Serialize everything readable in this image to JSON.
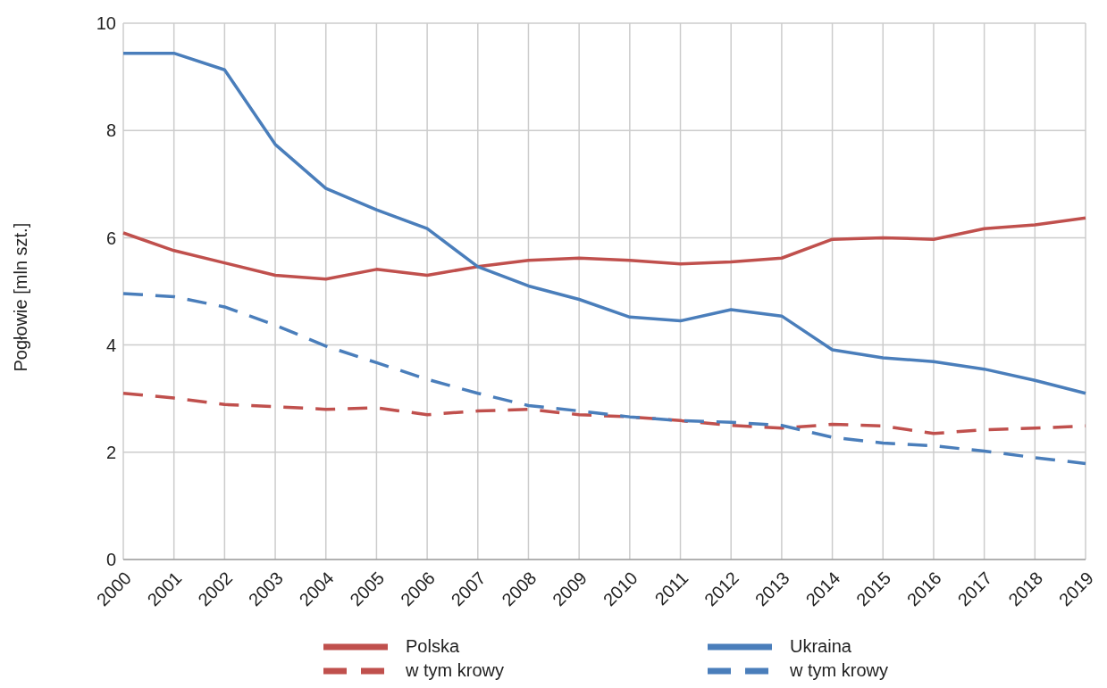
{
  "chart_data": {
    "type": "line",
    "ylabel": "Pogłowie [mln szt.]",
    "categories": [
      "2000",
      "2001",
      "2002",
      "2003",
      "2004",
      "2005",
      "2006",
      "2007",
      "2008",
      "2009",
      "2010",
      "2011",
      "2012",
      "2013",
      "2014",
      "2015",
      "2016",
      "2017",
      "2018",
      "2019"
    ],
    "series": [
      {
        "name": "Polska",
        "color": "#c0504d",
        "line_style": "solid",
        "values": [
          6.09,
          5.76,
          5.53,
          5.3,
          5.23,
          5.41,
          5.3,
          5.46,
          5.58,
          5.62,
          5.58,
          5.51,
          5.55,
          5.62,
          5.97,
          6.0,
          5.97,
          6.17,
          6.24,
          6.37
        ]
      },
      {
        "name": "Ukraina",
        "color": "#4a7ebb",
        "line_style": "solid",
        "values": [
          9.44,
          9.44,
          9.13,
          7.74,
          6.92,
          6.52,
          6.17,
          5.46,
          5.1,
          4.85,
          4.52,
          4.45,
          4.66,
          4.54,
          3.91,
          3.76,
          3.69,
          3.55,
          3.34,
          3.1
        ]
      },
      {
        "name": "w tym krowy",
        "color": "#c0504d",
        "line_style": "dashed",
        "values": [
          3.1,
          3.01,
          2.89,
          2.85,
          2.8,
          2.83,
          2.7,
          2.77,
          2.8,
          2.7,
          2.66,
          2.59,
          2.5,
          2.45,
          2.52,
          2.49,
          2.35,
          2.42,
          2.45,
          2.49
        ]
      },
      {
        "name": "w tym krowy",
        "color": "#4a7ebb",
        "line_style": "dashed",
        "values": [
          4.96,
          4.9,
          4.71,
          4.37,
          3.98,
          3.67,
          3.36,
          3.1,
          2.87,
          2.77,
          2.66,
          2.59,
          2.56,
          2.5,
          2.28,
          2.17,
          2.12,
          2.02,
          1.9,
          1.79
        ]
      }
    ],
    "ylim": [
      0,
      10
    ],
    "yticks": [
      0,
      2,
      4,
      6,
      8,
      10
    ],
    "grid": true,
    "legend": "bottom",
    "marker": "none"
  }
}
